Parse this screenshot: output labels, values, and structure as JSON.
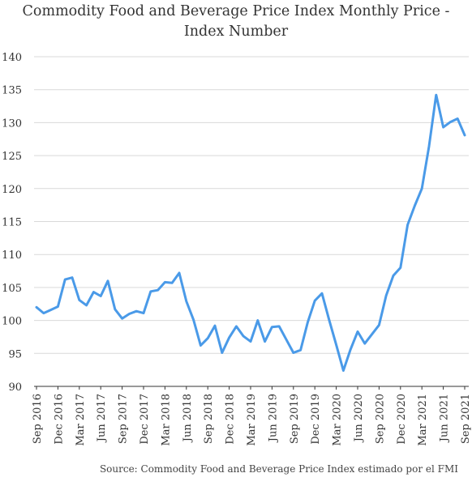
{
  "chart_data": {
    "type": "line",
    "title": "Commodity Food and Beverage Price Index Monthly Price - Index Number",
    "title_lines": [
      "Commodity Food and Beverage Price Index Monthly Price -",
      "Index Number"
    ],
    "source": "Source: Commodity Food and Beverage Price Index estimado por el FMI",
    "xlabel": "",
    "ylabel": "",
    "ylim": [
      90,
      140
    ],
    "yticks": [
      90,
      95,
      100,
      105,
      110,
      115,
      120,
      125,
      130,
      135,
      140
    ],
    "grid": true,
    "line_color": "#4a9ae8",
    "x_tick_labels": [
      "Sep 2016",
      "Dec 2016",
      "Mar 2017",
      "Jun 2017",
      "Sep 2017",
      "Dec 2017",
      "Mar 2018",
      "Jun 2018",
      "Sep 2018",
      "Dec 2018",
      "Mar 2019",
      "Jun 2019",
      "Sep 2019",
      "Dec 2019",
      "Mar 2020",
      "Jun 2020",
      "Sep 2020",
      "Dec 2020",
      "Mar 2021",
      "Jun 2021",
      "Sep 2021"
    ],
    "x": [
      "2016-09",
      "2016-10",
      "2016-11",
      "2016-12",
      "2017-01",
      "2017-02",
      "2017-03",
      "2017-04",
      "2017-05",
      "2017-06",
      "2017-07",
      "2017-08",
      "2017-09",
      "2017-10",
      "2017-11",
      "2017-12",
      "2018-01",
      "2018-02",
      "2018-03",
      "2018-04",
      "2018-05",
      "2018-06",
      "2018-07",
      "2018-08",
      "2018-09",
      "2018-10",
      "2018-11",
      "2018-12",
      "2019-01",
      "2019-02",
      "2019-03",
      "2019-04",
      "2019-05",
      "2019-06",
      "2019-07",
      "2019-08",
      "2019-09",
      "2019-10",
      "2019-11",
      "2019-12",
      "2020-01",
      "2020-02",
      "2020-03",
      "2020-04",
      "2020-05",
      "2020-06",
      "2020-07",
      "2020-08",
      "2020-09",
      "2020-10",
      "2020-11",
      "2020-12",
      "2021-01",
      "2021-02",
      "2021-03",
      "2021-04",
      "2021-05",
      "2021-06",
      "2021-07",
      "2021-08",
      "2021-09"
    ],
    "series": [
      {
        "values": [
          102.0,
          101.1,
          101.6,
          102.1,
          106.2,
          106.5,
          103.1,
          102.3,
          104.3,
          103.7,
          106.0,
          101.7,
          100.3,
          101.0,
          101.4,
          101.1,
          104.4,
          104.6,
          105.8,
          105.7,
          107.2,
          102.9,
          100.1,
          96.2,
          97.3,
          99.2,
          95.1,
          97.4,
          99.1,
          97.6,
          96.8,
          100.0,
          96.8,
          99.0,
          99.1,
          97.1,
          95.1,
          95.5,
          99.7,
          103.0,
          104.1,
          100.1,
          96.3,
          92.4,
          95.6,
          98.3,
          96.5,
          97.9,
          99.3,
          103.8,
          106.8,
          108.0,
          114.5,
          117.4,
          120.0,
          126.4,
          134.2,
          129.3,
          130.1,
          130.6,
          128.1
        ]
      }
    ]
  }
}
